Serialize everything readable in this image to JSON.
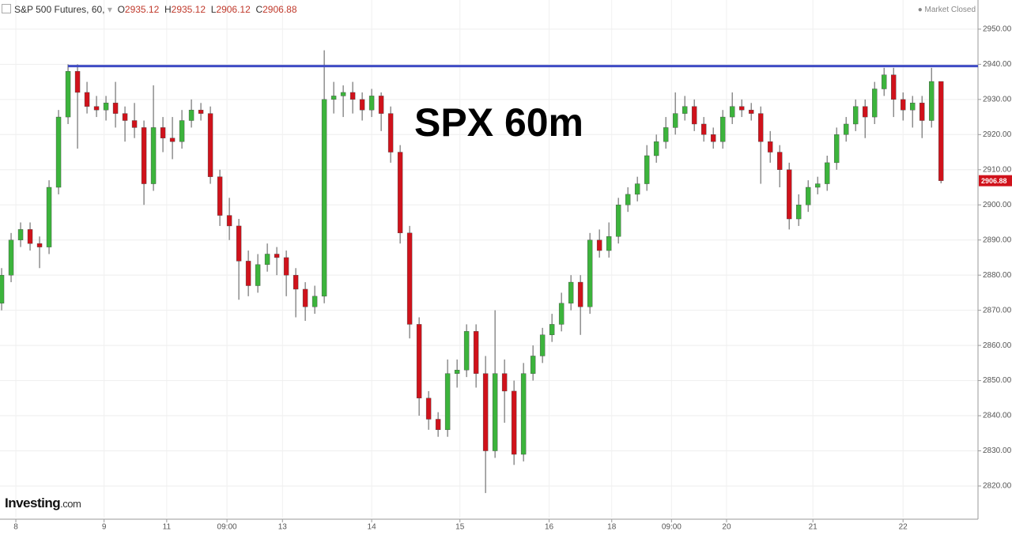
{
  "header": {
    "instrument": "S&P 500 Futures, 60,",
    "ohlc_labels": [
      "O",
      "H",
      "L",
      "C"
    ],
    "status": "Market Closed"
  },
  "logo": {
    "brand": "Investing",
    "suffix": ".com"
  },
  "chart_data": {
    "type": "candlestick",
    "annotation": "SPX 60m",
    "up_color": "#3cb43c",
    "down_color": "#d0121b",
    "hline": {
      "value": 2939.5,
      "from": 7,
      "color": "#3f4bc4"
    },
    "grid": true,
    "xlim": [
      -0.17,
      102.9
    ],
    "ylim": [
      2811.0,
      2958.3
    ],
    "xticks": [
      {
        "value": 1.5,
        "label": "8"
      },
      {
        "value": 10.8,
        "label": "9"
      },
      {
        "value": 17.4,
        "label": "11"
      },
      {
        "value": 23.75,
        "label": "09:00"
      },
      {
        "value": 29.6,
        "label": "13"
      },
      {
        "value": 39,
        "label": "14"
      },
      {
        "value": 48.3,
        "label": "15"
      },
      {
        "value": 57.7,
        "label": "16"
      },
      {
        "value": 64.3,
        "label": "18"
      },
      {
        "value": 70.6,
        "label": "09:00"
      },
      {
        "value": 76.4,
        "label": "20"
      },
      {
        "value": 85.5,
        "label": "21"
      },
      {
        "value": 95,
        "label": "22"
      }
    ],
    "yticks": [
      {
        "value": 2820,
        "label": "2820.00"
      },
      {
        "value": 2830,
        "label": "2830.00"
      },
      {
        "value": 2840,
        "label": "2840.00"
      },
      {
        "value": 2850,
        "label": "2850.00"
      },
      {
        "value": 2860,
        "label": "2860.00"
      },
      {
        "value": 2870,
        "label": "2870.00"
      },
      {
        "value": 2880,
        "label": "2880.00"
      },
      {
        "value": 2890,
        "label": "2890.00"
      },
      {
        "value": 2900,
        "label": "2900.00"
      },
      {
        "value": 2910,
        "label": "2910.00"
      },
      {
        "value": 2920,
        "label": "2920.00"
      },
      {
        "value": 2930,
        "label": "2930.00"
      },
      {
        "value": 2940,
        "label": "2940.00"
      },
      {
        "value": 2950,
        "label": "2950.00"
      }
    ],
    "open": [
      2872,
      2880,
      2890,
      2893,
      2889,
      2888,
      2905,
      2925,
      2938,
      2932,
      2928,
      2927,
      2929,
      2926,
      2924,
      2922,
      2906,
      2922,
      2919,
      2918,
      2924,
      2927,
      2926,
      2908,
      2897,
      2894,
      2884,
      2877,
      2883,
      2886,
      2885,
      2880,
      2876,
      2871,
      2874,
      2930,
      2931,
      2932,
      2930,
      2927,
      2931,
      2926,
      2915,
      2892,
      2866,
      2845,
      2839,
      2836,
      2852,
      2853,
      2864,
      2852,
      2830,
      2852,
      2847,
      2829,
      2852,
      2857,
      2863,
      2866,
      2872,
      2878,
      2871,
      2890,
      2887,
      2891,
      2900,
      2903,
      2906,
      2914,
      2918,
      2922,
      2926,
      2928,
      2923,
      2920,
      2918,
      2925,
      2928,
      2927,
      2926,
      2918,
      2915,
      2910,
      2896,
      2900,
      2905,
      2906,
      2912,
      2920,
      2923,
      2928,
      2925,
      2933,
      2937,
      2930,
      2927,
      2929,
      2924,
      2935.12
    ],
    "high": [
      2882,
      2892,
      2895,
      2895,
      2891,
      2907,
      2927,
      2940,
      2940,
      2935,
      2931,
      2931,
      2935,
      2928,
      2929,
      2924,
      2934,
      2925,
      2925,
      2927,
      2930,
      2929,
      2928,
      2910,
      2902,
      2896,
      2887,
      2886,
      2889,
      2888,
      2887,
      2882,
      2878,
      2877,
      2944,
      2935,
      2934,
      2935,
      2932,
      2933,
      2932,
      2928,
      2917,
      2894,
      2868,
      2847,
      2841,
      2856,
      2856,
      2866,
      2866,
      2857,
      2870,
      2856,
      2850,
      2855,
      2860,
      2865,
      2869,
      2875,
      2880,
      2880,
      2892,
      2893,
      2895,
      2902,
      2905,
      2908,
      2917,
      2920,
      2925,
      2932,
      2931,
      2930,
      2925,
      2922,
      2927,
      2932,
      2930,
      2929,
      2928,
      2921,
      2917,
      2912,
      2903,
      2907,
      2908,
      2914,
      2922,
      2925,
      2930,
      2930,
      2935,
      2939,
      2939,
      2932,
      2931,
      2931,
      2939,
      2935.12
    ],
    "low": [
      2870,
      2878,
      2888,
      2887,
      2882,
      2886,
      2903,
      2923,
      2916,
      2926,
      2925,
      2924,
      2922,
      2918,
      2919,
      2900,
      2904,
      2915,
      2913,
      2916,
      2922,
      2924,
      2906,
      2894,
      2890,
      2873,
      2874,
      2875,
      2881,
      2880,
      2874,
      2868,
      2867,
      2869,
      2872,
      2926,
      2925,
      2926,
      2924,
      2925,
      2921,
      2912,
      2889,
      2862,
      2840,
      2836,
      2834,
      2834,
      2848,
      2851,
      2848,
      2818,
      2828,
      2838,
      2826,
      2827,
      2850,
      2855,
      2861,
      2864,
      2870,
      2863,
      2869,
      2885,
      2885,
      2889,
      2898,
      2901,
      2904,
      2912,
      2916,
      2920,
      2924,
      2921,
      2918,
      2916,
      2916,
      2923,
      2925,
      2924,
      2906,
      2912,
      2905,
      2893,
      2894,
      2898,
      2903,
      2904,
      2910,
      2918,
      2921,
      2919,
      2923,
      2931,
      2925,
      2924,
      2922,
      2919,
      2922,
      2906.12
    ],
    "close": [
      2880,
      2890,
      2893,
      2889,
      2888,
      2905,
      2925,
      2938,
      2932,
      2928,
      2927,
      2929,
      2926,
      2924,
      2922,
      2906,
      2922,
      2919,
      2918,
      2924,
      2927,
      2926,
      2908,
      2897,
      2894,
      2884,
      2877,
      2883,
      2886,
      2885,
      2880,
      2876,
      2871,
      2874,
      2930,
      2931,
      2932,
      2930,
      2927,
      2931,
      2926,
      2915,
      2892,
      2866,
      2845,
      2839,
      2836,
      2852,
      2853,
      2864,
      2852,
      2830,
      2852,
      2847,
      2829,
      2852,
      2857,
      2863,
      2866,
      2872,
      2878,
      2871,
      2890,
      2887,
      2891,
      2900,
      2903,
      2906,
      2914,
      2918,
      2922,
      2926,
      2928,
      2923,
      2920,
      2918,
      2925,
      2928,
      2927,
      2926,
      2918,
      2915,
      2910,
      2896,
      2900,
      2905,
      2906,
      2912,
      2920,
      2923,
      2928,
      2925,
      2933,
      2937,
      2930,
      2927,
      2929,
      2924,
      2935.12,
      2906.88
    ]
  }
}
